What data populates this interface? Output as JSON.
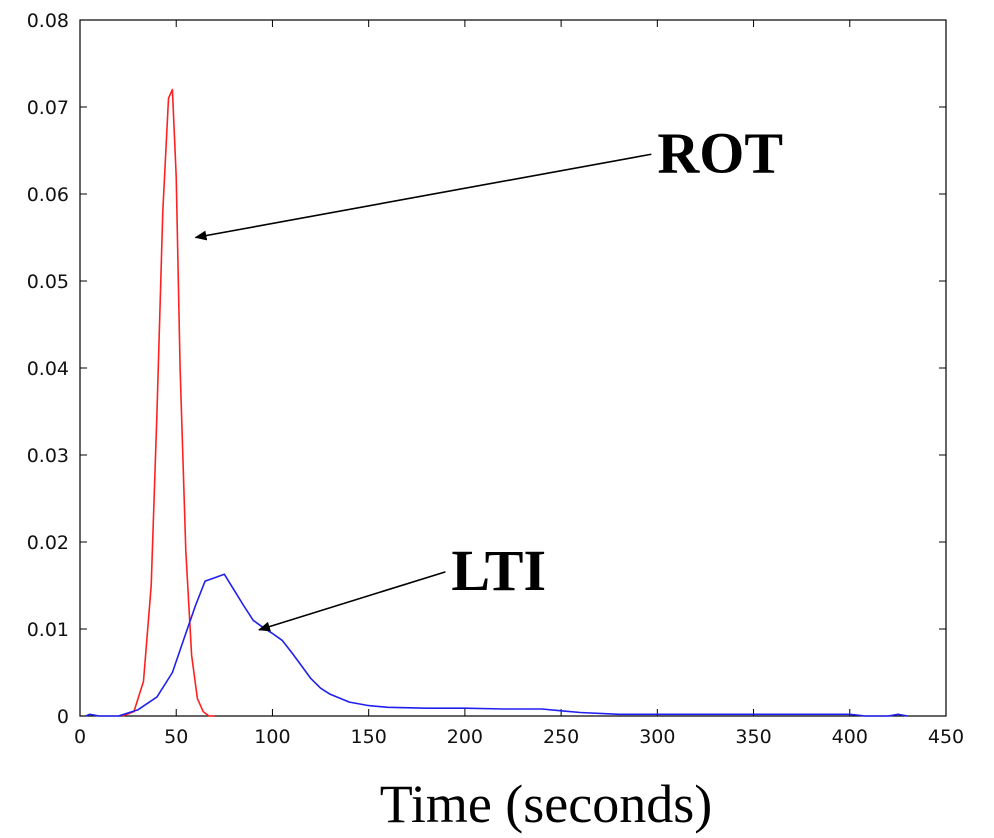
{
  "chart_data": {
    "type": "line",
    "title": "",
    "xlabel": "Time (seconds)",
    "ylabel": "",
    "xlim": [
      0,
      450
    ],
    "ylim": [
      0,
      0.08
    ],
    "xticks": [
      0,
      50,
      100,
      150,
      200,
      250,
      300,
      350,
      400,
      450
    ],
    "yticks": [
      0,
      0.01,
      0.02,
      0.03,
      0.04,
      0.05,
      0.06,
      0.07,
      0.08
    ],
    "xtick_labels": [
      "0",
      "50",
      "100",
      "150",
      "200",
      "250",
      "300",
      "350",
      "400",
      "450"
    ],
    "ytick_labels": [
      "0",
      "0.01",
      "0.02",
      "0.03",
      "0.04",
      "0.05",
      "0.06",
      "0.07",
      "0.08"
    ],
    "grid": false,
    "series": [
      {
        "name": "ROT",
        "color": "#ff2020",
        "x": [
          22,
          28,
          33,
          37,
          40,
          43,
          46,
          48,
          50,
          52,
          55,
          58,
          61,
          64,
          67,
          70
        ],
        "y": [
          0,
          0.0005,
          0.004,
          0.015,
          0.035,
          0.058,
          0.071,
          0.072,
          0.062,
          0.04,
          0.019,
          0.007,
          0.002,
          0.0005,
          0,
          0
        ]
      },
      {
        "name": "LTI",
        "color": "#2020ee",
        "x": [
          3,
          5,
          10,
          20,
          30,
          40,
          48,
          55,
          60,
          65,
          70,
          75,
          80,
          85,
          90,
          95,
          100,
          105,
          110,
          115,
          120,
          125,
          130,
          140,
          150,
          160,
          180,
          200,
          220,
          240,
          250,
          260,
          280,
          300,
          350,
          400,
          408,
          420,
          425,
          430
        ],
        "y": [
          0,
          0.0002,
          0,
          0,
          0.0007,
          0.0022,
          0.005,
          0.0095,
          0.0127,
          0.0155,
          0.0159,
          0.0163,
          0.0145,
          0.0127,
          0.011,
          0.0102,
          0.0095,
          0.0087,
          0.0073,
          0.0058,
          0.0043,
          0.0032,
          0.0025,
          0.0016,
          0.0012,
          0.001,
          0.0009,
          0.0009,
          0.0008,
          0.0008,
          0.0006,
          0.0004,
          0.0002,
          0.0002,
          0.0002,
          0.0002,
          0,
          0,
          0.0002,
          0
        ]
      }
    ],
    "annotations": [
      {
        "text": "ROT",
        "text_x": 300,
        "text_y": 0.0625,
        "arrow_x": 60,
        "arrow_y": 0.055
      },
      {
        "text": "LTI",
        "text_x": 193,
        "text_y": 0.0145,
        "arrow_x": 93,
        "arrow_y": 0.0099
      }
    ]
  }
}
